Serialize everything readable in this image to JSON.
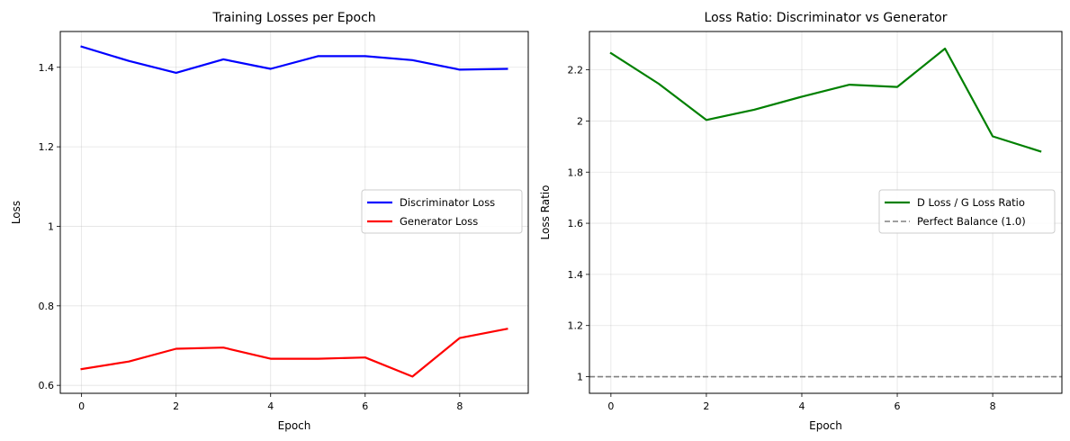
{
  "chart_data": [
    {
      "type": "line",
      "title": "Training Losses per Epoch",
      "xlabel": "Epoch",
      "ylabel": "Loss",
      "xlim": [
        -0.45,
        9.45
      ],
      "ylim": [
        0.58,
        1.49
      ],
      "xticks": [
        0,
        2,
        4,
        6,
        8
      ],
      "yticks": [
        0.6,
        0.8,
        1.0,
        1.2,
        1.4
      ],
      "grid": true,
      "legend": "center-right",
      "x": [
        0,
        1,
        2,
        3,
        4,
        5,
        6,
        7,
        8,
        9
      ],
      "series": [
        {
          "name": "Discriminator Loss",
          "color": "#0000ff",
          "dash": "solid",
          "values": [
            1.452,
            1.416,
            1.386,
            1.42,
            1.396,
            1.428,
            1.428,
            1.418,
            1.394,
            1.396
          ]
        },
        {
          "name": "Generator Loss",
          "color": "#ff0000",
          "dash": "solid",
          "values": [
            0.641,
            0.66,
            0.692,
            0.695,
            0.667,
            0.667,
            0.67,
            0.622,
            0.719,
            0.742
          ]
        }
      ]
    },
    {
      "type": "line",
      "title": "Loss Ratio: Discriminator vs Generator",
      "xlabel": "Epoch",
      "ylabel": "Loss Ratio",
      "xlim": [
        -0.45,
        9.45
      ],
      "ylim": [
        0.935,
        2.35
      ],
      "xticks": [
        0,
        2,
        4,
        6,
        8
      ],
      "yticks": [
        1.0,
        1.2,
        1.4,
        1.6,
        1.8,
        2.0,
        2.2
      ],
      "grid": true,
      "legend": "center-right",
      "x": [
        0,
        1,
        2,
        3,
        4,
        5,
        6,
        7,
        8,
        9
      ],
      "series": [
        {
          "name": "D Loss / G Loss Ratio",
          "color": "#008000",
          "dash": "solid",
          "values": [
            2.265,
            2.146,
            2.004,
            2.044,
            2.095,
            2.142,
            2.133,
            2.283,
            1.94,
            1.881
          ]
        }
      ],
      "hlines": [
        {
          "name": "Perfect Balance (1.0)",
          "y": 1.0,
          "color": "#808080",
          "dash": "dashed"
        }
      ]
    }
  ]
}
